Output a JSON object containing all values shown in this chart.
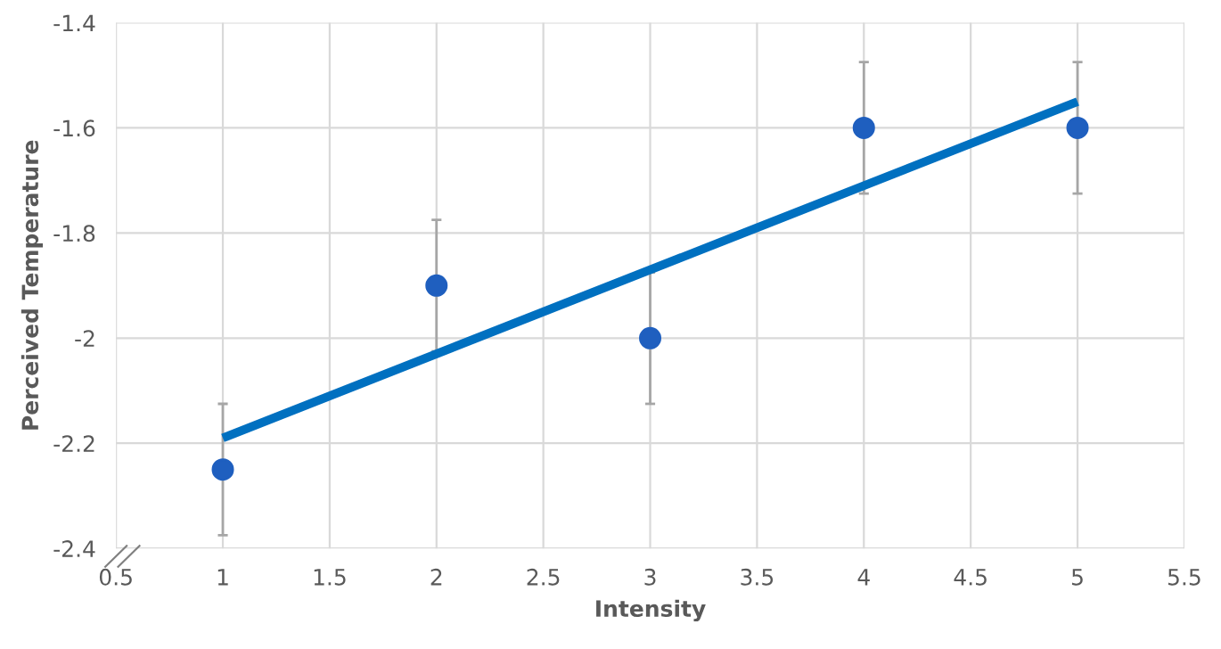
{
  "chart_data": {
    "type": "scatter",
    "xlabel": "Intensity",
    "ylabel": "Perceived Temperature",
    "series": [
      {
        "marker": "circle",
        "color": "#1f5fbf",
        "x": [
          1,
          2,
          3,
          4,
          5
        ],
        "values": [
          -2.25,
          -1.9,
          -2.0,
          -1.6,
          -1.6
        ],
        "errors": [
          0.125,
          0.125,
          0.125,
          0.125,
          0.125
        ]
      },
      {
        "type": "line",
        "color": "#0070c0",
        "x": [
          1,
          5
        ],
        "values": [
          -2.19,
          -1.55
        ]
      }
    ],
    "xlim": [
      0.5,
      5.5
    ],
    "xticks": [
      0.5,
      1,
      1.5,
      2,
      2.5,
      3,
      3.5,
      4,
      4.5,
      5,
      5.5
    ],
    "ylim": [
      -2.4,
      -1.4
    ],
    "yticks": [
      -2.4,
      -2.2,
      -2,
      -1.8,
      -1.6,
      -1.4
    ],
    "grid": true
  }
}
